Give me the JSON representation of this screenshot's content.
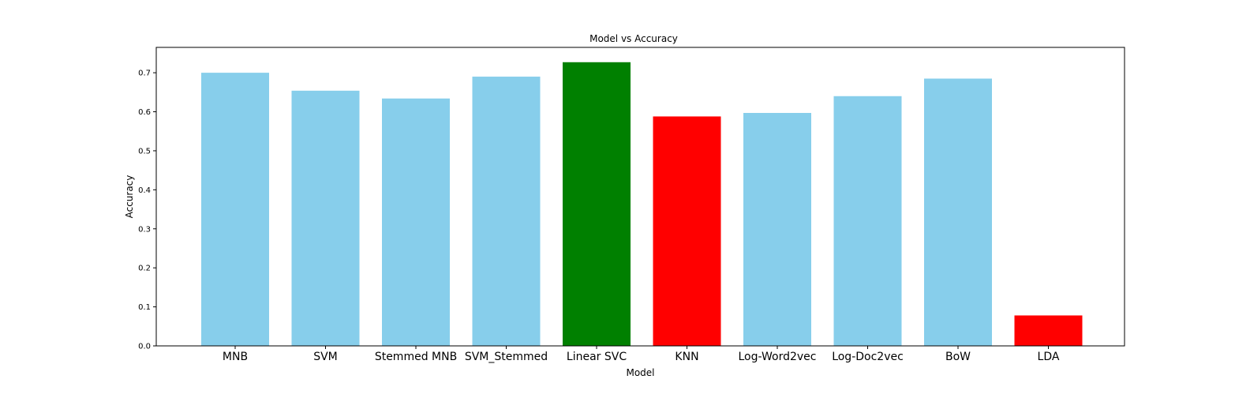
{
  "chart_data": {
    "type": "bar",
    "title": "Model vs Accuracy",
    "xlabel": "Model",
    "ylabel": "Accuracy",
    "categories": [
      "MNB",
      "SVM",
      "Stemmed MNB",
      "SVM_Stemmed",
      "Linear SVC",
      "KNN",
      "Log-Word2vec",
      "Log-Doc2vec",
      "BoW",
      "LDA"
    ],
    "values": [
      0.7,
      0.654,
      0.634,
      0.69,
      0.727,
      0.588,
      0.597,
      0.64,
      0.685,
      0.078
    ],
    "colors": [
      "#87CEEB",
      "#87CEEB",
      "#87CEEB",
      "#87CEEB",
      "#008000",
      "#FF0000",
      "#87CEEB",
      "#87CEEB",
      "#87CEEB",
      "#FF0000"
    ],
    "ylim": [
      0,
      0.765
    ],
    "yticks": [
      0.0,
      0.1,
      0.2,
      0.3,
      0.4,
      0.5,
      0.6,
      0.7
    ],
    "ytick_labels": [
      "0.0",
      "0.1",
      "0.2",
      "0.3",
      "0.4",
      "0.5",
      "0.6",
      "0.7"
    ],
    "grid": false,
    "legend": "none"
  }
}
